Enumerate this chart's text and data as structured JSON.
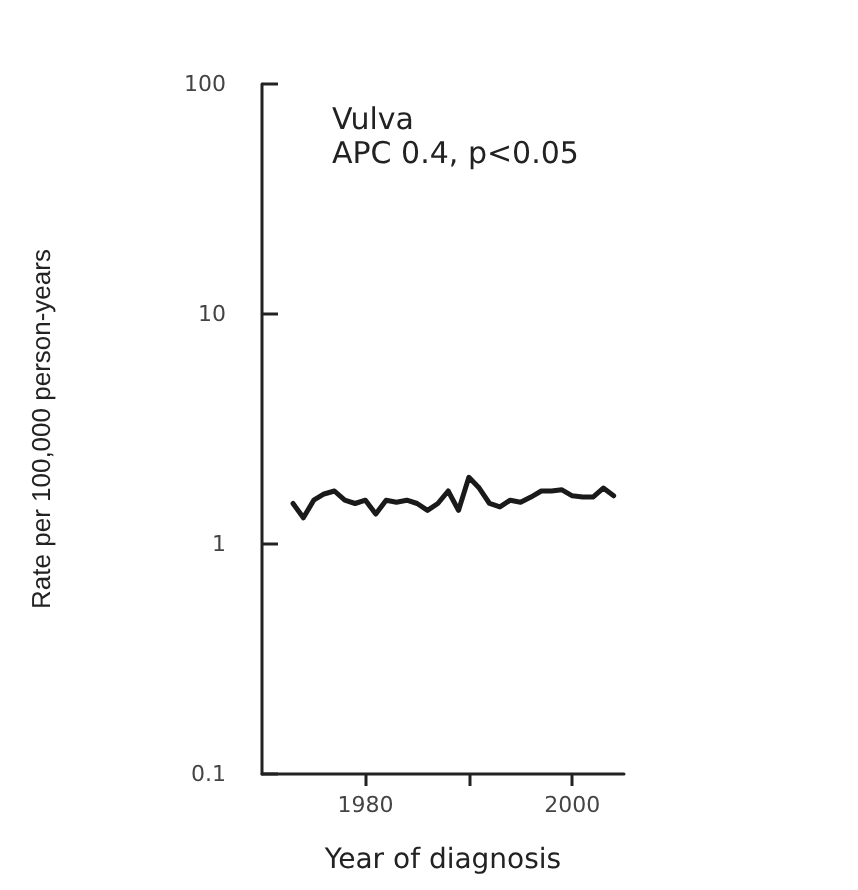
{
  "chart_data": {
    "type": "line",
    "title": "Vulva",
    "annotations": [
      "APC 0.4, p<0.05"
    ],
    "xlabel": "Year of diagnosis",
    "ylabel": "Rate per 100,000 person-years",
    "x": [
      1973,
      1974,
      1975,
      1976,
      1977,
      1978,
      1979,
      1980,
      1981,
      1982,
      1983,
      1984,
      1985,
      1986,
      1987,
      1988,
      1989,
      1990,
      1991,
      1992,
      1993,
      1994,
      1995,
      1996,
      1997,
      1998,
      1999,
      2000,
      2001,
      2002,
      2003,
      2004
    ],
    "series": [
      {
        "color": "#1a1a1a",
        "values": [
          1.5,
          1.3,
          1.55,
          1.65,
          1.7,
          1.55,
          1.5,
          1.55,
          1.35,
          1.55,
          1.52,
          1.55,
          1.5,
          1.4,
          1.5,
          1.7,
          1.4,
          1.95,
          1.75,
          1.5,
          1.45,
          1.55,
          1.52,
          1.6,
          1.7,
          1.7,
          1.72,
          1.62,
          1.6,
          1.6,
          1.75,
          1.62
        ]
      }
    ],
    "log": "y",
    "ylim": [
      0.1,
      100
    ],
    "yticks": [
      0.1,
      1,
      10,
      100
    ],
    "xlim": [
      1970,
      2005
    ],
    "xticks": [
      1980,
      {
        "value": 1990,
        "label": null
      },
      2000
    ],
    "grid": false,
    "marker": "none",
    "line_style": "solid"
  }
}
